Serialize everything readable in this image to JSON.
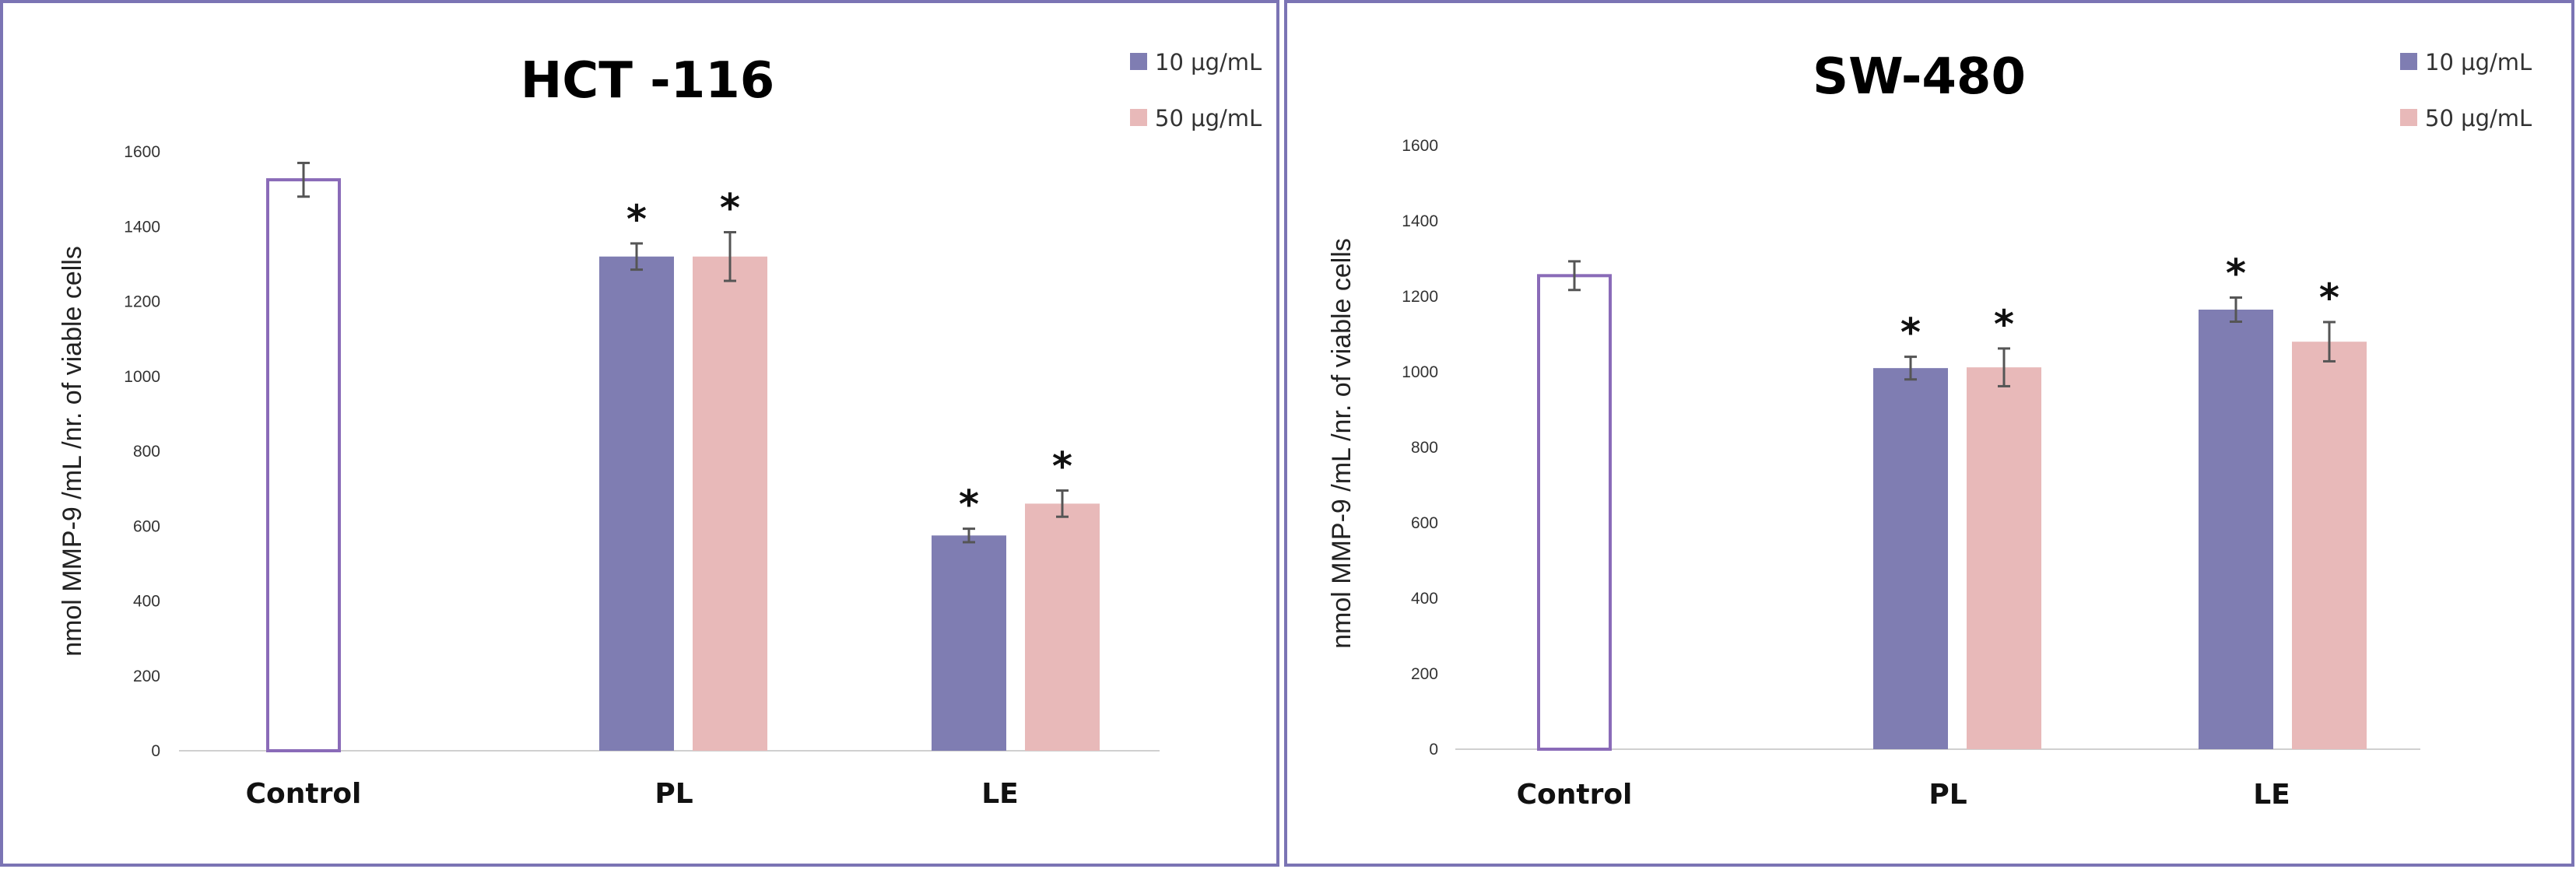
{
  "chart_data": [
    {
      "type": "bar",
      "title": "HCT -116",
      "ylabel": "nmol MMP-9 /mL /nr. of viable cells",
      "xlabel": "",
      "ylim": [
        0,
        1600
      ],
      "yticks": [
        0,
        200,
        400,
        600,
        800,
        1000,
        1200,
        1400,
        1600
      ],
      "categories": [
        "Control",
        "PL",
        "LE"
      ],
      "control": {
        "name": "Control",
        "value": 1525,
        "error": 45
      },
      "series": [
        {
          "name": "10 μg/mL",
          "color": "#7f7db2",
          "values": [
            null,
            1320,
            575
          ],
          "errors": [
            null,
            35,
            18
          ],
          "significant": [
            false,
            true,
            true
          ]
        },
        {
          "name": "50 μg/mL",
          "color": "#e8b9b9",
          "values": [
            null,
            1320,
            660
          ],
          "errors": [
            null,
            65,
            35
          ],
          "significant": [
            false,
            true,
            true
          ]
        }
      ],
      "significance_marker": "*",
      "legend_position": "top-right",
      "colors": {
        "control_edge": "#8a6bb8",
        "border": "#7b74b4",
        "error_bar": "#555555"
      }
    },
    {
      "type": "bar",
      "title": "SW-480",
      "ylabel": "nmol MMP-9 /mL /nr. of viable cells",
      "xlabel": "",
      "ylim": [
        0,
        1600
      ],
      "yticks": [
        0,
        200,
        400,
        600,
        800,
        1000,
        1200,
        1400,
        1600
      ],
      "categories": [
        "Control",
        "PL",
        "LE"
      ],
      "control": {
        "name": "Control",
        "value": 1255,
        "error": 38
      },
      "series": [
        {
          "name": "10 μg/mL",
          "color": "#7f7db2",
          "values": [
            null,
            1010,
            1165
          ],
          "errors": [
            null,
            30,
            32
          ],
          "significant": [
            false,
            true,
            true
          ]
        },
        {
          "name": "50 μg/mL",
          "color": "#e8b9b9",
          "values": [
            null,
            1012,
            1080
          ],
          "errors": [
            null,
            50,
            52
          ],
          "significant": [
            false,
            true,
            true
          ]
        }
      ],
      "significance_marker": "*",
      "legend_position": "top-right",
      "colors": {
        "control_edge": "#8a6bb8",
        "border": "#7b74b4",
        "error_bar": "#555555"
      }
    }
  ]
}
